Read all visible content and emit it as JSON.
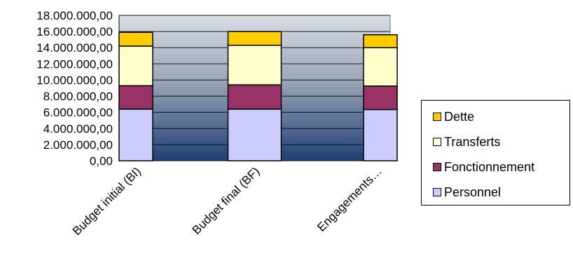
{
  "chart_data": {
    "type": "bar",
    "stacked": true,
    "categories": [
      "Budget initial (BI)",
      "Budget final (BF)",
      "Engagements…"
    ],
    "series": [
      {
        "name": "Personnel",
        "color": "#CCCCFF",
        "values": [
          6400000,
          6400000,
          6350000
        ]
      },
      {
        "name": "Fonctionnement",
        "color": "#993366",
        "values": [
          2900000,
          3000000,
          2900000
        ]
      },
      {
        "name": "Transferts",
        "color": "#FFFFCC",
        "values": [
          4900000,
          4900000,
          4750000
        ]
      },
      {
        "name": "Dette",
        "color": "#FFCC00",
        "values": [
          1700000,
          1700000,
          1600000
        ]
      }
    ],
    "ylim": [
      0,
      18000000
    ],
    "yticks": [
      "0,00",
      "2.000.000,00",
      "4.000.000,00",
      "6.000.000,00",
      "8.000.000,00",
      "10.000.000,00",
      "12.000.000,00",
      "14.000.000,00",
      "16.000.000,00",
      "18.000.000,00"
    ],
    "grid": true,
    "legend_position": "right",
    "legend_order": [
      "Dette",
      "Transferts",
      "Fonctionnement",
      "Personnel"
    ]
  }
}
